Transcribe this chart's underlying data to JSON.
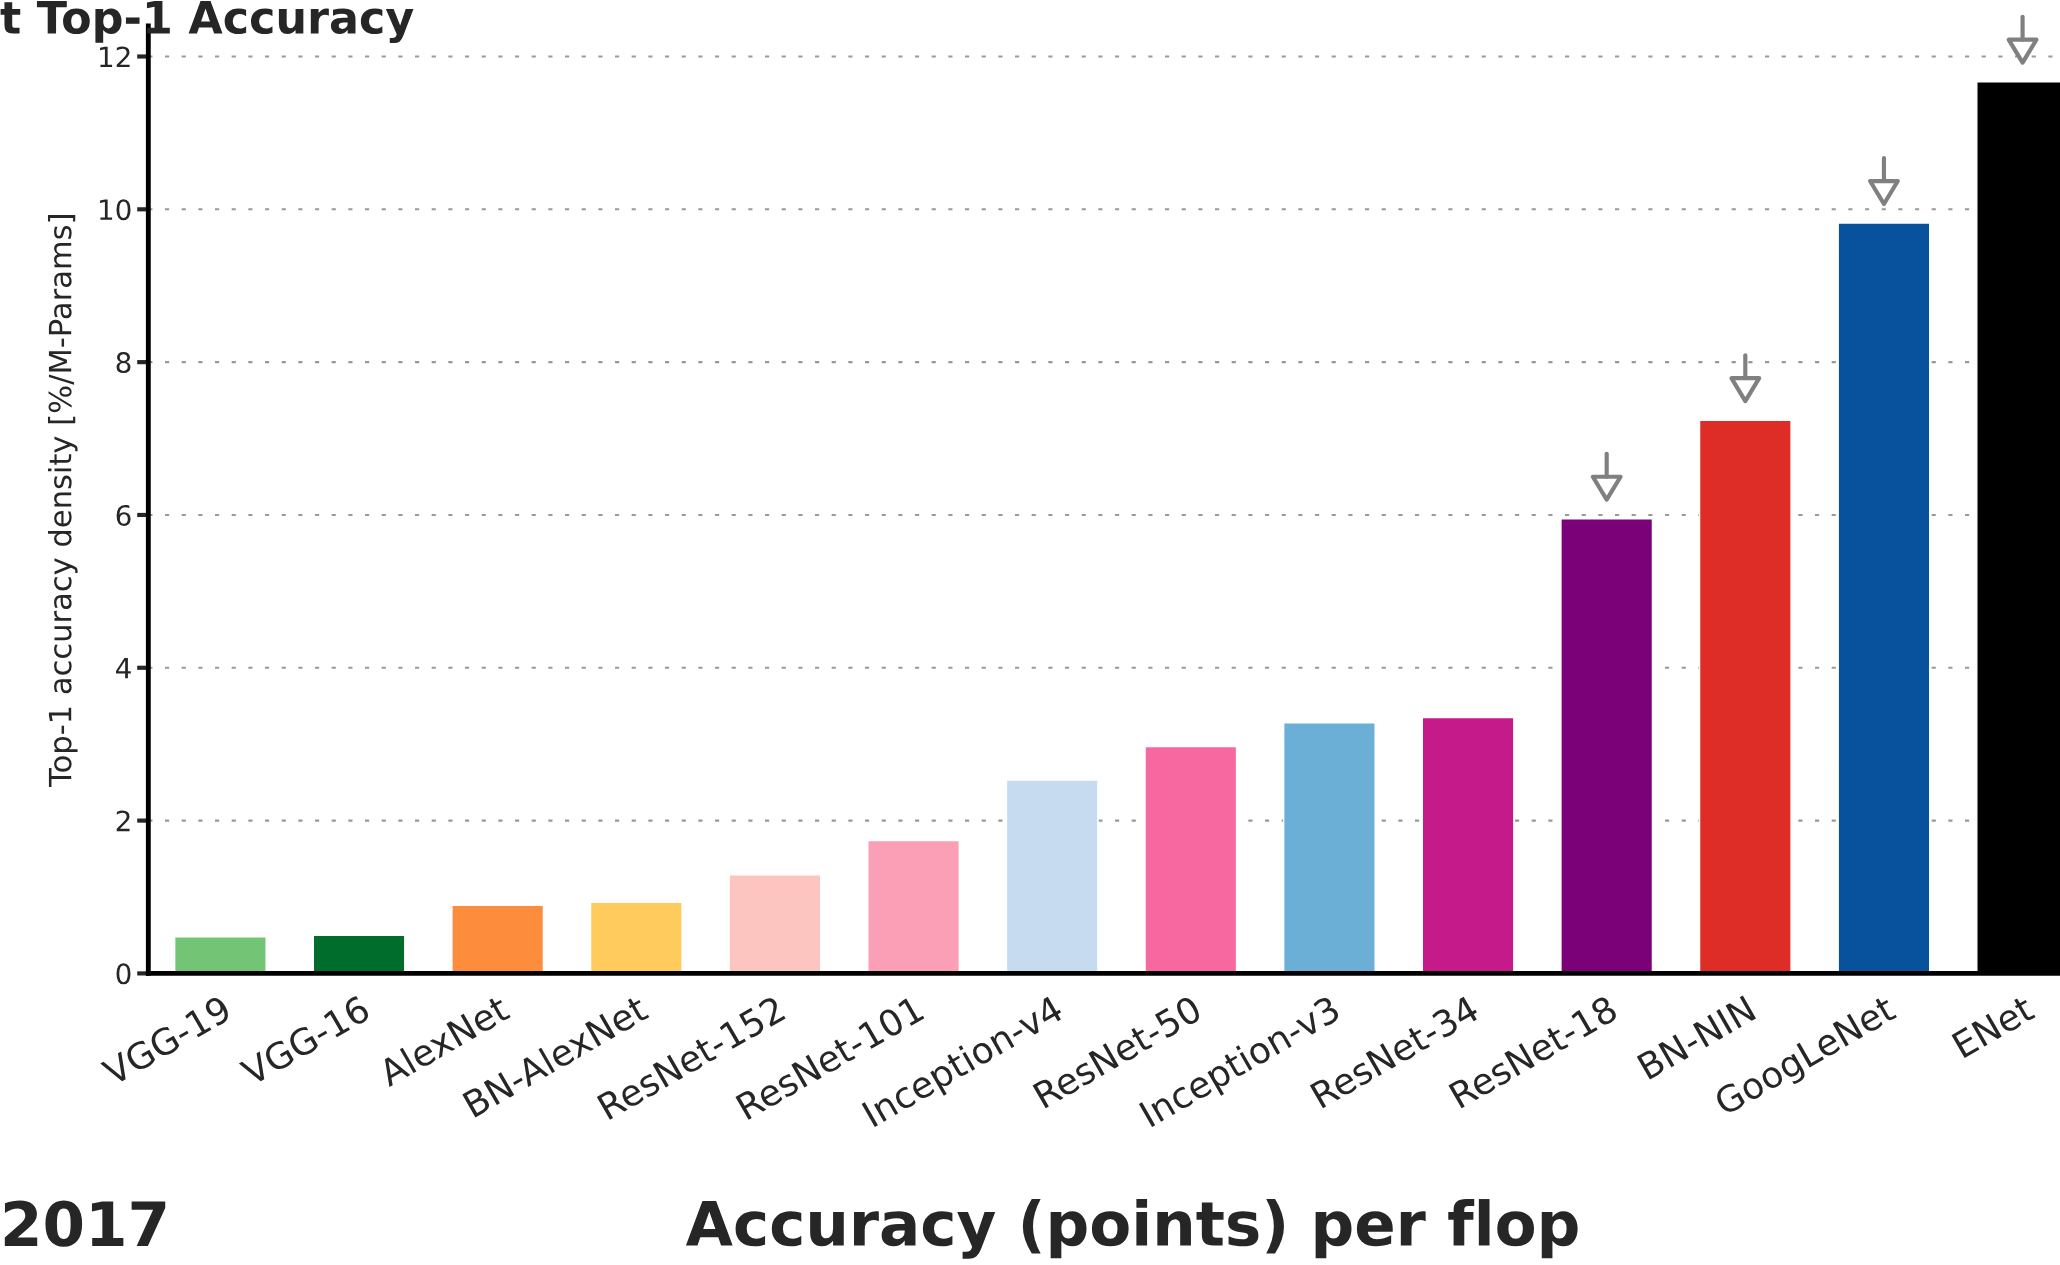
{
  "chart_data": {
    "type": "bar",
    "title": "t Top-1 Accuracy",
    "xlabel": "Accuracy (points) per flop",
    "ylabel": "Top-1 accuracy density [%/M-Params]",
    "annotations": [
      "2017"
    ],
    "categories": [
      "VGG-19",
      "VGG-16",
      "AlexNet",
      "BN-AlexNet",
      "ResNet-152",
      "ResNet-101",
      "Inception-v4",
      "ResNet-50",
      "Inception-v3",
      "ResNet-34",
      "ResNet-18",
      "BN-NIN",
      "GoogLeNet",
      "ENet"
    ],
    "values": [
      0.48,
      0.5,
      0.89,
      0.93,
      1.29,
      1.74,
      2.53,
      2.97,
      3.28,
      3.35,
      5.95,
      7.24,
      9.82,
      11.67
    ],
    "colors": [
      "#74c476",
      "#006d2c",
      "#fd8d3c",
      "#fecb5c",
      "#fcc5c0",
      "#fa9fb5",
      "#c6dbef",
      "#f768a1",
      "#6baed6",
      "#c51b8a",
      "#7a0177",
      "#de2d26",
      "#08519c",
      "#000000"
    ],
    "ylim": [
      0,
      12.4
    ],
    "yticks": [
      0,
      2,
      4,
      6,
      8,
      10,
      12
    ],
    "grid": "y"
  }
}
